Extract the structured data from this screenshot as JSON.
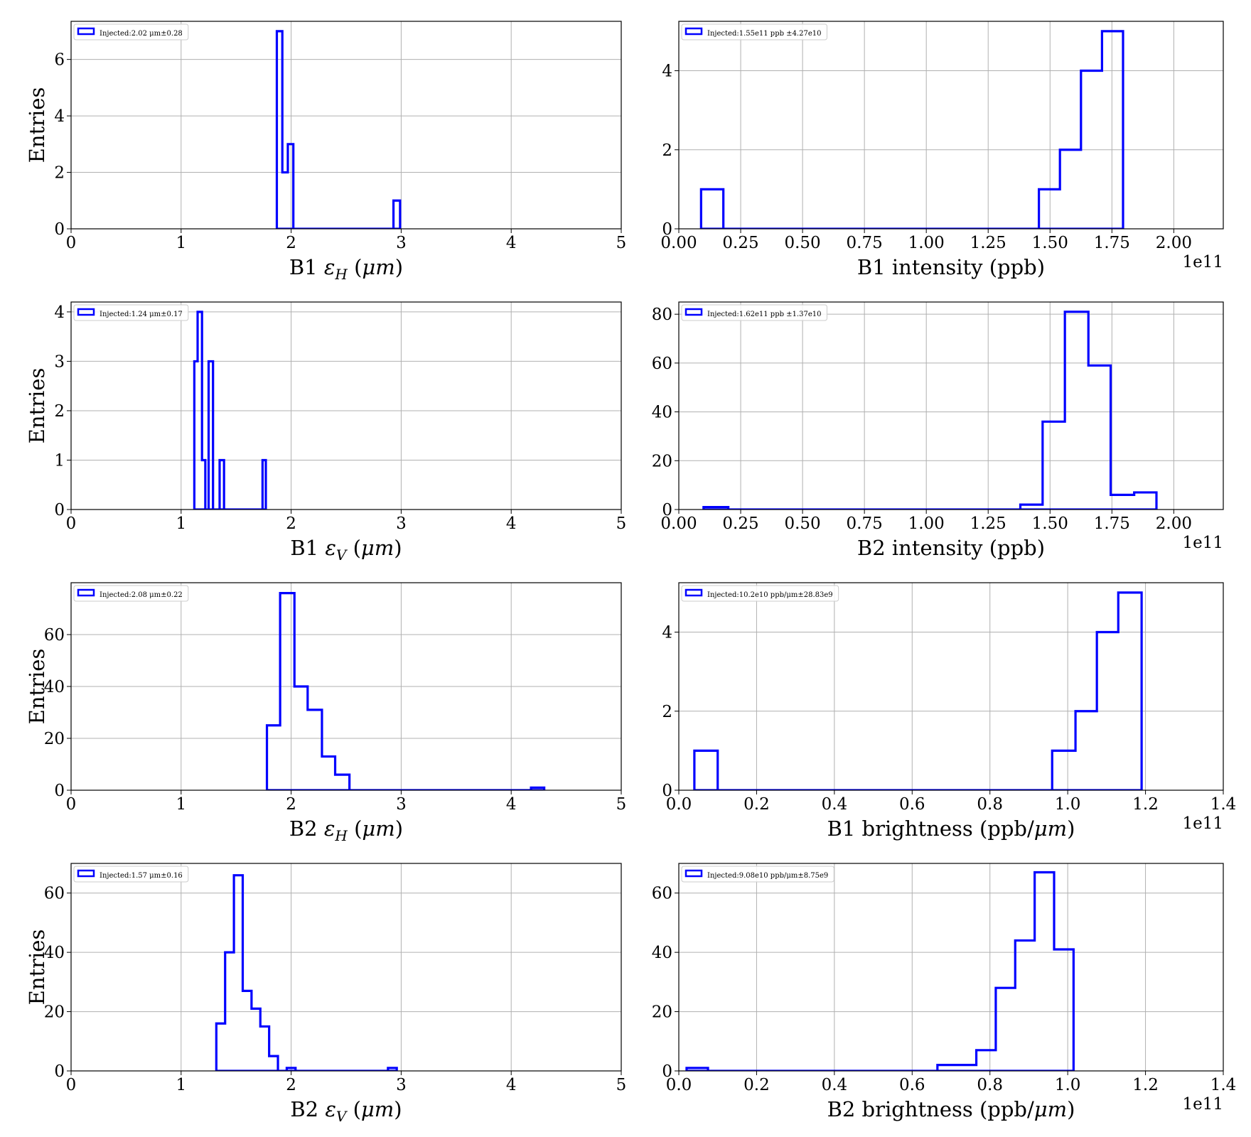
{
  "chart_data": [
    {
      "type": "histogram",
      "xlabel": "B1 εH (μm)",
      "ylabel": "Entries",
      "legend": "Injected:2.02 μm±0.28",
      "xticks": [
        "0",
        "1",
        "2",
        "3",
        "4",
        "5"
      ],
      "yticks": [
        "0",
        "2",
        "4",
        "6"
      ],
      "offset_text": "",
      "xlim": [
        0,
        5
      ],
      "ylim": [
        0,
        7.35
      ],
      "edges": [
        1.87,
        1.92,
        1.97,
        2.02,
        2.93,
        2.99
      ],
      "counts": [
        7,
        2,
        3,
        0,
        1
      ]
    },
    {
      "type": "histogram",
      "xlabel": "B1 intensity (ppb)",
      "ylabel": "",
      "legend": "Injected:1.55e11 ppb ±4.27e10",
      "xticks": [
        "0.00",
        "0.25",
        "0.50",
        "0.75",
        "1.00",
        "1.25",
        "1.50",
        "1.75",
        "2.00"
      ],
      "yticks": [
        "0",
        "2",
        "4"
      ],
      "offset_text": "1e11",
      "xlim": [
        0,
        2.2
      ],
      "ylim": [
        0,
        5.25
      ],
      "edges": [
        0.09,
        0.18,
        1.455,
        1.54,
        1.625,
        1.71,
        1.795
      ],
      "counts": [
        1,
        0,
        1,
        2,
        4,
        5
      ]
    },
    {
      "type": "histogram",
      "xlabel": "B1 εV (μm)",
      "ylabel": "Entries",
      "legend": "Injected:1.24 μm±0.17",
      "xticks": [
        "0",
        "1",
        "2",
        "3",
        "4",
        "5"
      ],
      "yticks": [
        "0",
        "1",
        "2",
        "3",
        "4"
      ],
      "offset_text": "",
      "xlim": [
        0,
        5
      ],
      "ylim": [
        0,
        4.2
      ],
      "edges": [
        1.12,
        1.15,
        1.19,
        1.22,
        1.25,
        1.29,
        1.32,
        1.35,
        1.39,
        1.74,
        1.77
      ],
      "counts": [
        3,
        4,
        1,
        0,
        3,
        0,
        0,
        1,
        0,
        1
      ]
    },
    {
      "type": "histogram",
      "xlabel": "B2 intensity (ppb)",
      "ylabel": "",
      "legend": "Injected:1.62e11 ppb ±1.37e10",
      "xticks": [
        "0.00",
        "0.25",
        "0.50",
        "0.75",
        "1.00",
        "1.25",
        "1.50",
        "1.75",
        "2.00"
      ],
      "yticks": [
        "0",
        "20",
        "40",
        "60",
        "80"
      ],
      "offset_text": "1e11",
      "xlim": [
        0,
        2.2
      ],
      "ylim": [
        0,
        85
      ],
      "edges": [
        0.1,
        0.2,
        1.38,
        1.47,
        1.56,
        1.655,
        1.745,
        1.84,
        1.93
      ],
      "counts": [
        1,
        0,
        2,
        36,
        81,
        59,
        6,
        7
      ]
    },
    {
      "type": "histogram",
      "xlabel": "B2 εH (μm)",
      "ylabel": "Entries",
      "legend": "Injected:2.08 μm±0.22",
      "xticks": [
        "0",
        "1",
        "2",
        "3",
        "4",
        "5"
      ],
      "yticks": [
        "0",
        "20",
        "40",
        "60"
      ],
      "offset_text": "",
      "xlim": [
        0,
        5
      ],
      "ylim": [
        0,
        80
      ],
      "edges": [
        1.78,
        1.9,
        2.03,
        2.15,
        2.28,
        2.4,
        2.53,
        4.18,
        4.3
      ],
      "counts": [
        25,
        76,
        40,
        31,
        13,
        6,
        0,
        1
      ]
    },
    {
      "type": "histogram",
      "xlabel": "B1 brightness (ppb/μm)",
      "ylabel": "",
      "legend": "Injected:10.2e10 ppb/μm±28.83e9",
      "xticks": [
        "0.0",
        "0.2",
        "0.4",
        "0.6",
        "0.8",
        "1.0",
        "1.2",
        "1.4"
      ],
      "yticks": [
        "0",
        "2",
        "4"
      ],
      "offset_text": "1e11",
      "xlim": [
        0,
        1.4
      ],
      "ylim": [
        0,
        5.25
      ],
      "edges": [
        0.04,
        0.1,
        0.96,
        1.02,
        1.075,
        1.13,
        1.19
      ],
      "counts": [
        1,
        0,
        1,
        2,
        4,
        5
      ]
    },
    {
      "type": "histogram",
      "xlabel": "B2 εV (μm)",
      "ylabel": "Entries",
      "legend": "Injected:1.57 μm±0.16",
      "xticks": [
        "0",
        "1",
        "2",
        "3",
        "4",
        "5"
      ],
      "yticks": [
        "0",
        "20",
        "40",
        "60"
      ],
      "offset_text": "",
      "xlim": [
        0,
        5
      ],
      "ylim": [
        0,
        70
      ],
      "edges": [
        1.32,
        1.4,
        1.48,
        1.56,
        1.64,
        1.72,
        1.8,
        1.88,
        1.96,
        2.04,
        2.88,
        2.96
      ],
      "counts": [
        16,
        40,
        66,
        27,
        21,
        15,
        5,
        0,
        1,
        0,
        1
      ]
    },
    {
      "type": "histogram",
      "xlabel": "B2 brightness (ppb/μm)",
      "ylabel": "",
      "legend": "Injected:9.08e10 ppb/μm±8.75e9",
      "xticks": [
        "0.0",
        "0.2",
        "0.4",
        "0.6",
        "0.8",
        "1.0",
        "1.2",
        "1.4"
      ],
      "yticks": [
        "0",
        "20",
        "40",
        "60"
      ],
      "offset_text": "1e11",
      "xlim": [
        0,
        1.4
      ],
      "ylim": [
        0,
        70
      ],
      "edges": [
        0.02,
        0.075,
        0.665,
        0.765,
        0.815,
        0.865,
        0.915,
        0.965,
        1.015
      ],
      "counts": [
        1,
        0,
        2,
        7,
        28,
        44,
        67,
        41
      ]
    }
  ],
  "colors": {
    "histogram": "#0000ff",
    "grid": "#b0b0b0",
    "axes": "#000000"
  }
}
